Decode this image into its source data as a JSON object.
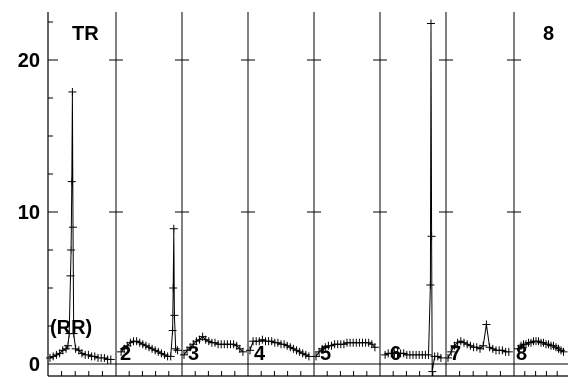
{
  "chart_data": {
    "type": "line",
    "title": "",
    "xlabel": "",
    "ylabel": "",
    "ylim": [
      -0.7,
      23.4
    ],
    "yticks": [
      0,
      10,
      20
    ],
    "ytick_labels": [
      "0",
      "10",
      "20"
    ],
    "grid": false,
    "top_left_label": "TR",
    "bottom_left_label": "(RR)",
    "panel_labels": [
      "2",
      "3",
      "4",
      "5",
      "6",
      "7",
      "8"
    ],
    "top_right_label": "8",
    "panels": [
      {
        "index": 1,
        "label": "(RR)",
        "points": [
          [
            0.0,
            0.4
          ],
          [
            0.05,
            0.5
          ],
          [
            0.1,
            0.6
          ],
          [
            0.15,
            0.7
          ],
          [
            0.2,
            0.9
          ],
          [
            0.25,
            1.0
          ],
          [
            0.28,
            1.2
          ],
          [
            0.3,
            2.0
          ],
          [
            0.32,
            5.8
          ],
          [
            0.33,
            7.5
          ],
          [
            0.34,
            12.0
          ],
          [
            0.35,
            17.9
          ],
          [
            0.36,
            9.0
          ],
          [
            0.37,
            2.0
          ],
          [
            0.4,
            1.0
          ],
          [
            0.45,
            0.9
          ],
          [
            0.5,
            0.7
          ],
          [
            0.55,
            0.6
          ],
          [
            0.6,
            0.6
          ],
          [
            0.65,
            0.5
          ],
          [
            0.7,
            0.5
          ],
          [
            0.75,
            0.4
          ],
          [
            0.8,
            0.4
          ],
          [
            0.85,
            0.4
          ],
          [
            0.9,
            0.3
          ],
          [
            0.95,
            0.3
          ]
        ]
      },
      {
        "index": 2,
        "label": "2",
        "points": [
          [
            0.05,
            0.8
          ],
          [
            0.1,
            1.0
          ],
          [
            0.15,
            1.2
          ],
          [
            0.2,
            1.4
          ],
          [
            0.25,
            1.5
          ],
          [
            0.3,
            1.5
          ],
          [
            0.35,
            1.4
          ],
          [
            0.4,
            1.3
          ],
          [
            0.45,
            1.2
          ],
          [
            0.5,
            1.1
          ],
          [
            0.55,
            1.0
          ],
          [
            0.6,
            0.9
          ],
          [
            0.65,
            0.8
          ],
          [
            0.7,
            0.7
          ],
          [
            0.75,
            0.6
          ],
          [
            0.8,
            0.5
          ],
          [
            0.85,
            0.5
          ],
          [
            0.88,
            2.2
          ],
          [
            0.89,
            5.0
          ],
          [
            0.9,
            8.9
          ],
          [
            0.91,
            3.2
          ],
          [
            0.93,
            1.0
          ],
          [
            0.96,
            0.9
          ]
        ]
      },
      {
        "index": 3,
        "label": "3",
        "points": [
          [
            0.0,
            0.6
          ],
          [
            0.05,
            0.9
          ],
          [
            0.1,
            1.1
          ],
          [
            0.15,
            1.3
          ],
          [
            0.2,
            1.5
          ],
          [
            0.25,
            1.6
          ],
          [
            0.3,
            1.8
          ],
          [
            0.35,
            1.6
          ],
          [
            0.4,
            1.5
          ],
          [
            0.45,
            1.4
          ],
          [
            0.5,
            1.4
          ],
          [
            0.55,
            1.3
          ],
          [
            0.6,
            1.3
          ],
          [
            0.65,
            1.3
          ],
          [
            0.7,
            1.3
          ],
          [
            0.75,
            1.3
          ],
          [
            0.8,
            1.3
          ],
          [
            0.85,
            1.2
          ],
          [
            0.9,
            1.0
          ],
          [
            0.95,
            0.8
          ]
        ]
      },
      {
        "index": 4,
        "label": "4",
        "points": [
          [
            0.0,
            0.9
          ],
          [
            0.05,
            1.5
          ],
          [
            0.1,
            1.5
          ],
          [
            0.15,
            1.5
          ],
          [
            0.2,
            1.6
          ],
          [
            0.25,
            1.5
          ],
          [
            0.3,
            1.5
          ],
          [
            0.35,
            1.5
          ],
          [
            0.4,
            1.4
          ],
          [
            0.45,
            1.4
          ],
          [
            0.5,
            1.3
          ],
          [
            0.55,
            1.3
          ],
          [
            0.6,
            1.2
          ],
          [
            0.65,
            1.1
          ],
          [
            0.7,
            1.0
          ],
          [
            0.75,
            0.9
          ],
          [
            0.8,
            0.8
          ],
          [
            0.85,
            0.7
          ],
          [
            0.9,
            0.6
          ],
          [
            0.95,
            0.5
          ]
        ]
      },
      {
        "index": 5,
        "label": "5",
        "points": [
          [
            0.0,
            0.5
          ],
          [
            0.05,
            0.8
          ],
          [
            0.1,
            1.0
          ],
          [
            0.15,
            1.1
          ],
          [
            0.2,
            1.2
          ],
          [
            0.25,
            1.2
          ],
          [
            0.3,
            1.3
          ],
          [
            0.35,
            1.3
          ],
          [
            0.4,
            1.3
          ],
          [
            0.45,
            1.3
          ],
          [
            0.5,
            1.4
          ],
          [
            0.55,
            1.4
          ],
          [
            0.6,
            1.4
          ],
          [
            0.65,
            1.4
          ],
          [
            0.7,
            1.4
          ],
          [
            0.75,
            1.4
          ],
          [
            0.8,
            1.4
          ],
          [
            0.85,
            1.4
          ],
          [
            0.9,
            1.3
          ],
          [
            0.95,
            1.1
          ]
        ]
      },
      {
        "index": 6,
        "label": "6",
        "points": [
          [
            0.05,
            0.6
          ],
          [
            0.1,
            0.7
          ],
          [
            0.15,
            0.7
          ],
          [
            0.2,
            0.7
          ],
          [
            0.25,
            0.7
          ],
          [
            0.3,
            0.7
          ],
          [
            0.35,
            0.7
          ],
          [
            0.4,
            0.6
          ],
          [
            0.45,
            0.6
          ],
          [
            0.5,
            0.6
          ],
          [
            0.55,
            0.6
          ],
          [
            0.6,
            0.6
          ],
          [
            0.65,
            0.6
          ],
          [
            0.7,
            0.6
          ],
          [
            0.75,
            0.6
          ],
          [
            0.78,
            5.2
          ],
          [
            0.79,
            22.4
          ],
          [
            0.8,
            8.4
          ],
          [
            0.81,
            -0.5
          ],
          [
            0.85,
            0.5
          ],
          [
            0.9,
            0.5
          ],
          [
            0.95,
            0.4
          ]
        ]
      },
      {
        "index": 7,
        "label": "7",
        "points": [
          [
            0.0,
            0.4
          ],
          [
            0.05,
            0.8
          ],
          [
            0.1,
            1.2
          ],
          [
            0.15,
            1.4
          ],
          [
            0.2,
            1.5
          ],
          [
            0.25,
            1.4
          ],
          [
            0.3,
            1.3
          ],
          [
            0.35,
            1.2
          ],
          [
            0.4,
            1.1
          ],
          [
            0.45,
            1.1
          ],
          [
            0.5,
            1.0
          ],
          [
            0.55,
            1.2
          ],
          [
            0.6,
            2.6
          ],
          [
            0.65,
            1.1
          ],
          [
            0.7,
            1.0
          ],
          [
            0.75,
            0.9
          ],
          [
            0.8,
            0.9
          ],
          [
            0.85,
            0.9
          ],
          [
            0.9,
            0.8
          ],
          [
            0.95,
            0.8
          ]
        ]
      },
      {
        "index": 8,
        "label": "8",
        "points": [
          [
            0.05,
            1.0
          ],
          [
            0.1,
            1.2
          ],
          [
            0.15,
            1.3
          ],
          [
            0.2,
            1.3
          ],
          [
            0.25,
            1.4
          ],
          [
            0.3,
            1.4
          ],
          [
            0.35,
            1.5
          ],
          [
            0.4,
            1.5
          ],
          [
            0.45,
            1.5
          ],
          [
            0.5,
            1.4
          ],
          [
            0.55,
            1.4
          ],
          [
            0.6,
            1.3
          ],
          [
            0.65,
            1.3
          ],
          [
            0.7,
            1.2
          ],
          [
            0.75,
            1.2
          ],
          [
            0.8,
            1.1
          ],
          [
            0.85,
            1.0
          ],
          [
            0.9,
            0.9
          ],
          [
            0.95,
            0.8
          ]
        ]
      }
    ]
  }
}
